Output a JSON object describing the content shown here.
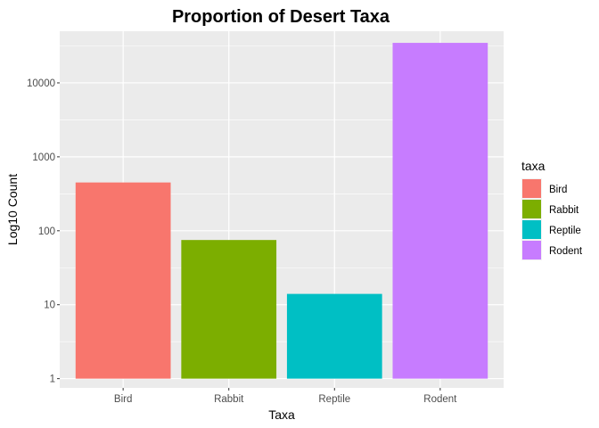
{
  "chart_data": {
    "type": "bar",
    "title": "Proportion of Desert Taxa",
    "xlabel": "Taxa",
    "ylabel": "Log10 Count",
    "y_scale": "log10",
    "ylim": [
      0.75,
      50000
    ],
    "y_ticks": [
      1,
      10,
      100,
      1000,
      10000
    ],
    "y_tick_labels": [
      "1",
      "10",
      "100",
      "1000",
      "10000"
    ],
    "categories": [
      "Bird",
      "Rabbit",
      "Reptile",
      "Rodent"
    ],
    "values": [
      450,
      75,
      14,
      34786
    ],
    "colors": [
      "#F8766D",
      "#7CAE00",
      "#00BFC4",
      "#C77CFF"
    ],
    "grid": true,
    "legend": {
      "title": "taxa",
      "placement": "right",
      "entries": [
        "Bird",
        "Rabbit",
        "Reptile",
        "Rodent"
      ]
    }
  }
}
